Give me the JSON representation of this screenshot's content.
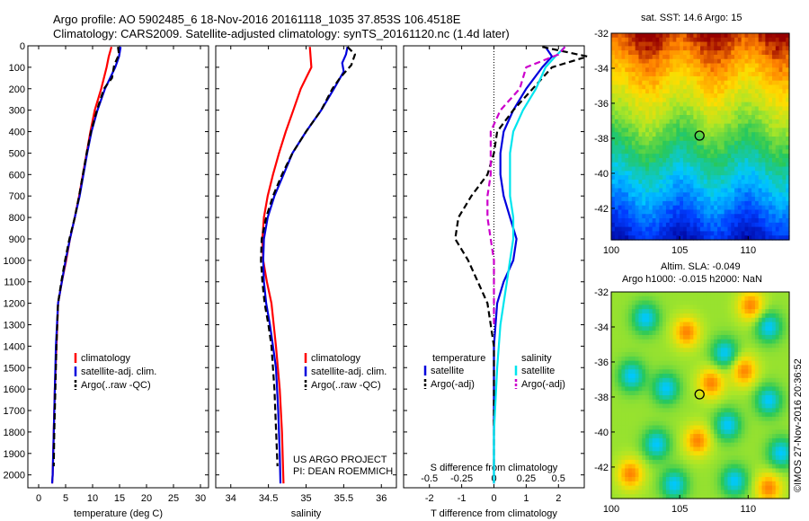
{
  "header": {
    "line1": "Argo profile: AO 5902485_6 18-Nov-2016 20161118_1035 37.853S 106.4518E",
    "line2": "Climatology: CARS2009. Satellite-adjusted climatology: synTS_20161120.nc (1.4d later)"
  },
  "credit": "©IMOS 27-Nov-2016 20:36:52",
  "colors": {
    "climatology": "#ff0000",
    "satellite": "#0000dd",
    "argo": "#000000",
    "salinity_satellite": "#00e5ee",
    "salinity_argo": "#cc00cc"
  },
  "chart_data": [
    {
      "type": "line",
      "id": "temperature-profile",
      "xlabel": "temperature (deg C)",
      "ylabel": "",
      "xlim": [
        -2,
        31.5
      ],
      "ylim": [
        2060,
        0
      ],
      "x_ticks": [
        0,
        5,
        10,
        15,
        20,
        25,
        30
      ],
      "y_ticks": [
        0,
        100,
        200,
        300,
        400,
        500,
        600,
        700,
        800,
        900,
        1000,
        1100,
        1200,
        1300,
        1400,
        1500,
        1600,
        1700,
        1800,
        1900,
        2000
      ],
      "legend": [
        "climatology",
        "satellite-adj. clim.",
        "Argo(..raw -QC)"
      ],
      "series": [
        {
          "name": "climatology",
          "color": "#ff0000",
          "dash": false,
          "x": [
            13.5,
            13.0,
            12.6,
            11.6,
            10.4,
            9.6,
            8.9,
            8.2,
            7.5,
            6.7,
            5.8,
            5.1,
            4.3,
            3.6,
            3.3,
            3.0,
            2.8,
            2.7,
            2.6,
            2.5
          ],
          "y": [
            5,
            50,
            100,
            200,
            300,
            400,
            500,
            600,
            700,
            800,
            900,
            1000,
            1100,
            1200,
            1400,
            1600,
            1800,
            1900,
            2000,
            2040
          ]
        },
        {
          "name": "satellite-adj. clim.",
          "color": "#0000dd",
          "dash": false,
          "x": [
            15.2,
            14.9,
            14.2,
            12.3,
            10.9,
            9.8,
            9.0,
            8.3,
            7.6,
            6.7,
            5.8,
            5.0,
            4.3,
            3.6,
            3.2,
            3.0,
            2.8,
            2.7,
            2.6,
            2.5
          ],
          "y": [
            5,
            50,
            100,
            200,
            300,
            400,
            500,
            600,
            700,
            800,
            900,
            1000,
            1100,
            1200,
            1400,
            1600,
            1800,
            1900,
            2000,
            2040
          ]
        },
        {
          "name": "Argo(..raw -QC)",
          "color": "#000000",
          "dash": true,
          "x": [
            14.7,
            14.9,
            14.0,
            13.6,
            12.1,
            10.8,
            9.7,
            8.9,
            8.2,
            7.5,
            6.7,
            5.7,
            4.9,
            4.2,
            3.6,
            3.3,
            3.1,
            2.9,
            2.8
          ],
          "y": [
            5,
            40,
            90,
            150,
            200,
            300,
            400,
            500,
            600,
            700,
            800,
            900,
            1000,
            1100,
            1200,
            1400,
            1600,
            1800,
            1960
          ]
        }
      ]
    },
    {
      "type": "line",
      "id": "salinity-profile",
      "xlabel": "salinity",
      "ylabel": "",
      "xlim": [
        33.8,
        36.2
      ],
      "ylim": [
        2060,
        0
      ],
      "x_ticks": [
        34,
        34.5,
        35,
        35.5,
        36
      ],
      "legend": [
        "climatology",
        "satellite-adj. clim.",
        "Argo(..raw -QC)"
      ],
      "annotation": [
        "US ARGO PROJECT",
        "PI: DEAN ROEMMICH"
      ],
      "series": [
        {
          "name": "climatology",
          "color": "#ff0000",
          "dash": false,
          "x": [
            35.05,
            35.06,
            35.07,
            35.0,
            34.93,
            34.83,
            34.73,
            34.64,
            34.56,
            34.49,
            34.44,
            34.42,
            34.43,
            34.48,
            34.54,
            34.6,
            34.65,
            34.68,
            34.7
          ],
          "y": [
            5,
            50,
            100,
            150,
            200,
            300,
            400,
            500,
            600,
            700,
            800,
            900,
            1000,
            1100,
            1200,
            1400,
            1600,
            1800,
            2040
          ]
        },
        {
          "name": "satellite-adj. clim.",
          "color": "#0000dd",
          "dash": false,
          "x": [
            35.55,
            35.53,
            35.48,
            35.5,
            35.37,
            35.2,
            35.0,
            34.82,
            34.7,
            34.58,
            34.49,
            34.44,
            34.43,
            34.44,
            34.47,
            34.52,
            34.56,
            34.6,
            34.63,
            34.65,
            34.66
          ],
          "y": [
            5,
            40,
            80,
            120,
            200,
            300,
            400,
            500,
            600,
            700,
            800,
            900,
            1000,
            1100,
            1200,
            1300,
            1400,
            1500,
            1700,
            1900,
            2040
          ]
        },
        {
          "name": "Argo(..raw -QC)",
          "color": "#000000",
          "dash": true,
          "x": [
            35.55,
            35.65,
            35.6,
            35.45,
            35.35,
            35.2,
            35.0,
            34.82,
            34.68,
            34.56,
            34.47,
            34.41,
            34.4,
            34.42,
            34.45,
            34.5,
            34.54,
            34.58,
            34.62
          ],
          "y": [
            5,
            40,
            90,
            150,
            200,
            300,
            400,
            500,
            600,
            700,
            800,
            900,
            1000,
            1100,
            1200,
            1300,
            1400,
            1600,
            1960
          ]
        }
      ]
    },
    {
      "type": "line",
      "id": "difference-profile",
      "xlabel": "T difference from climatology",
      "top_label": "S difference from climatology",
      "xlim": [
        -2.8,
        2.8
      ],
      "ylim": [
        2060,
        0
      ],
      "t_ticks": [
        -2,
        -1,
        0,
        1,
        2
      ],
      "s_ticks": [
        "-0.5",
        "-0.25",
        "0",
        "0.25",
        "0.5"
      ],
      "s_tick_values": [
        -0.5,
        -0.25,
        0,
        0.25,
        0.5
      ],
      "legend": {
        "temperature_header": "temperature",
        "salinity_header": "salinity",
        "t_satellite": "satellite",
        "t_argo": "Argo(-adj)",
        "s_satellite": "satellite",
        "s_argo": "Argo(-adj)"
      },
      "series": [
        {
          "name": "temperature satellite",
          "color": "#0000dd",
          "dash": false,
          "x": [
            1.6,
            1.8,
            1.5,
            1.0,
            0.6,
            0.3,
            0.2,
            0.2,
            0.3,
            0.5,
            0.7,
            0.6,
            0.3,
            0.1,
            0.0,
            0.0,
            0.0,
            0.0
          ],
          "y": [
            5,
            50,
            100,
            200,
            300,
            400,
            500,
            600,
            700,
            800,
            900,
            1000,
            1100,
            1200,
            1400,
            1600,
            1800,
            2040
          ]
        },
        {
          "name": "temperature Argo(-adj)",
          "color": "#000000",
          "dash": true,
          "x": [
            1.5,
            2.9,
            1.8,
            1.2,
            0.6,
            0.1,
            0.0,
            -0.2,
            -0.7,
            -1.1,
            -1.2,
            -0.8,
            -0.5,
            -0.2,
            -0.1,
            0.0,
            0.0,
            0.0
          ],
          "y": [
            5,
            50,
            100,
            200,
            300,
            400,
            500,
            600,
            700,
            800,
            900,
            1000,
            1100,
            1200,
            1300,
            1400,
            1600,
            1960
          ]
        },
        {
          "name": "salinity satellite",
          "color": "#00e5ee",
          "dash": false,
          "x": [
            2.2,
            1.9,
            1.6,
            1.3,
            0.9,
            0.6,
            0.5,
            0.5,
            0.5,
            0.6,
            0.6,
            0.5,
            0.4,
            0.3,
            0.2,
            0.1,
            0.0,
            0.0
          ],
          "y": [
            5,
            50,
            100,
            200,
            300,
            400,
            500,
            600,
            700,
            800,
            900,
            1000,
            1100,
            1200,
            1300,
            1500,
            1800,
            2040
          ]
        },
        {
          "name": "salinity Argo(-adj)",
          "color": "#cc00cc",
          "dash": true,
          "x": [
            2.2,
            2.0,
            1.0,
            0.8,
            0.2,
            -0.1,
            -0.1,
            -0.1,
            -0.2,
            -0.2,
            -0.1,
            0.0,
            0.0,
            0.0
          ],
          "y": [
            5,
            40,
            100,
            200,
            300,
            400,
            500,
            600,
            700,
            800,
            900,
            1000,
            1100,
            1300
          ]
        }
      ]
    },
    {
      "type": "heatmap",
      "id": "sst-map",
      "title": "sat. SST: 14.6 Argo: 15",
      "xlim": [
        100,
        113
      ],
      "ylim": [
        -43.8,
        -32
      ],
      "x_ticks": [
        100,
        105,
        110
      ],
      "y_ticks": [
        -32,
        -34,
        -36,
        -38,
        -40,
        -42
      ],
      "argo_position": [
        106.45,
        -37.85
      ]
    },
    {
      "type": "heatmap",
      "id": "sla-map",
      "title_line1": "Altim. SLA: -0.049",
      "title_line2": "Argo h1000: -0.015 h2000: NaN",
      "xlim": [
        100,
        113
      ],
      "ylim": [
        -43.8,
        -32
      ],
      "x_ticks": [
        100,
        105,
        110
      ],
      "y_ticks": [
        -32,
        -34,
        -36,
        -38,
        -40,
        -42
      ],
      "argo_position": [
        106.45,
        -37.85
      ]
    }
  ]
}
